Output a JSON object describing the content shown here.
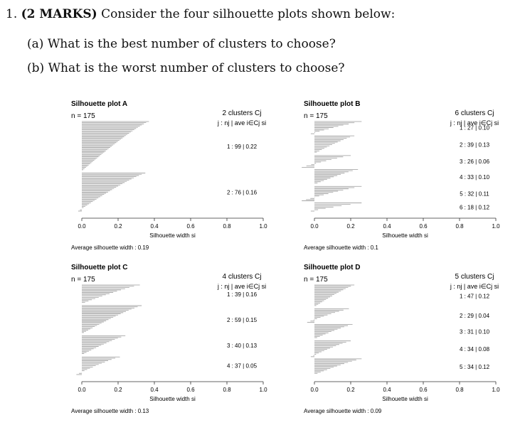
{
  "question": {
    "number": "1.",
    "marks": "(2 MARKS)",
    "text": "Consider the four silhouette plots shown below:",
    "parts": [
      {
        "label": "(a)",
        "text": "What is the best number of clusters to choose?"
      },
      {
        "label": "(b)",
        "text": "What is the worst number of clusters to choose?"
      }
    ]
  },
  "chart_data": [
    {
      "type": "bar",
      "title": "Silhouette plot A",
      "n_label": "n = 175",
      "clusters_label": "2 clusters  Cj",
      "legend_header": "j :  nj | ave i∈Cj  si",
      "xlabel": "Silhouette width si",
      "xlim": [
        0.0,
        1.0
      ],
      "xticks": [
        "0.0",
        "0.2",
        "0.4",
        "0.6",
        "0.8",
        "1.0"
      ],
      "avg_label": "Average silhouette width :  0.19",
      "clusters": [
        {
          "label": "1 :   99  |  0.22",
          "n": 99,
          "ave": 0.22,
          "max": 0.37,
          "neg": 0.0
        },
        {
          "label": "2 :   76  |  0.16",
          "n": 76,
          "ave": 0.16,
          "max": 0.35,
          "neg": -0.02
        }
      ]
    },
    {
      "type": "bar",
      "title": "Silhouette plot B",
      "n_label": "n = 175",
      "clusters_label": "6 clusters  Cj",
      "legend_header": "j :  nj | ave i∈Cj  si",
      "xlabel": "Silhouette width si",
      "xlim": [
        0.0,
        1.0
      ],
      "xticks": [
        "0.0",
        "0.2",
        "0.4",
        "0.6",
        "0.8",
        "1.0"
      ],
      "avg_label": "Average silhouette width :  0.1",
      "clusters": [
        {
          "label": "1 :   27  |  0.10",
          "n": 27,
          "ave": 0.1,
          "max": 0.26,
          "neg": -0.02
        },
        {
          "label": "2 :   39  |  0.13",
          "n": 39,
          "ave": 0.13,
          "max": 0.22,
          "neg": 0.0
        },
        {
          "label": "3 :   26  |  0.06",
          "n": 26,
          "ave": 0.06,
          "max": 0.2,
          "neg": -0.07
        },
        {
          "label": "4 :   33  |  0.10",
          "n": 33,
          "ave": 0.1,
          "max": 0.24,
          "neg": 0.0
        },
        {
          "label": "5 :   32  |  0.11",
          "n": 32,
          "ave": 0.11,
          "max": 0.26,
          "neg": -0.07
        },
        {
          "label": "6 :   18  |  0.12",
          "n": 18,
          "ave": 0.12,
          "max": 0.26,
          "neg": -0.02
        }
      ]
    },
    {
      "type": "bar",
      "title": "Silhouette plot C",
      "n_label": "n = 175",
      "clusters_label": "4 clusters  Cj",
      "legend_header": "j :  nj | ave i∈Cj  si",
      "xlabel": "Silhouette width si",
      "xlim": [
        0.0,
        1.0
      ],
      "xticks": [
        "0.0",
        "0.2",
        "0.4",
        "0.6",
        "0.8",
        "1.0"
      ],
      "avg_label": "Average silhouette width :  0.13",
      "clusters": [
        {
          "label": "1 :   39  |  0.16",
          "n": 39,
          "ave": 0.16,
          "max": 0.32,
          "neg": 0.0
        },
        {
          "label": "2 :   59  |  0.15",
          "n": 59,
          "ave": 0.15,
          "max": 0.33,
          "neg": 0.0
        },
        {
          "label": "3 :   40  |  0.13",
          "n": 40,
          "ave": 0.13,
          "max": 0.24,
          "neg": 0.0
        },
        {
          "label": "4 :   37  |  0.05",
          "n": 37,
          "ave": 0.05,
          "max": 0.21,
          "neg": -0.03
        }
      ]
    },
    {
      "type": "bar",
      "title": "Silhouette plot D",
      "n_label": "n = 175",
      "clusters_label": "5 clusters  Cj",
      "legend_header": "j :  nj | ave i∈Cj  si",
      "xlabel": "Silhouette width si",
      "xlim": [
        0.0,
        1.0
      ],
      "xticks": [
        "0.0",
        "0.2",
        "0.4",
        "0.6",
        "0.8",
        "1.0"
      ],
      "avg_label": "Average silhouette width :  0.09",
      "clusters": [
        {
          "label": "1 :   47  |  0.12",
          "n": 47,
          "ave": 0.12,
          "max": 0.22,
          "neg": 0.0
        },
        {
          "label": "2 :   29  |  0.04",
          "n": 29,
          "ave": 0.04,
          "max": 0.19,
          "neg": -0.04
        },
        {
          "label": "3 :   31  |  0.10",
          "n": 31,
          "ave": 0.1,
          "max": 0.21,
          "neg": 0.0
        },
        {
          "label": "4 :   34  |  0.08",
          "n": 34,
          "ave": 0.08,
          "max": 0.2,
          "neg": -0.02
        },
        {
          "label": "5 :   34  |  0.12",
          "n": 34,
          "ave": 0.12,
          "max": 0.26,
          "neg": 0.0
        }
      ]
    }
  ]
}
